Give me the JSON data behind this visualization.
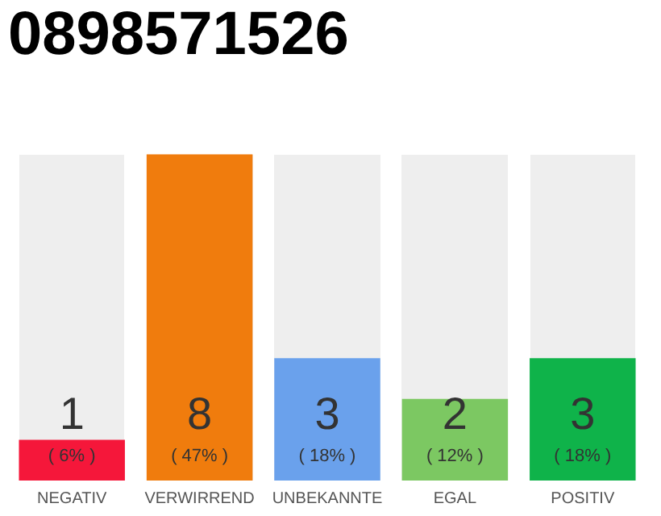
{
  "chart_data": {
    "type": "bar",
    "title": "0898571526",
    "categories": [
      "NEGATIV",
      "VERWIRREND",
      "UNBEKANNTE",
      "EGAL",
      "POSITIV"
    ],
    "values": [
      1,
      8,
      3,
      2,
      3
    ],
    "colors": [
      "#f5173a",
      "#f07c0d",
      "#6aa1ec",
      "#7cc862",
      "#0fb34a"
    ],
    "ylim": [
      0,
      8
    ],
    "data_labels": true,
    "grid": false,
    "legend": false,
    "annotations": [
      "( 6% )",
      "( 47% )",
      "( 18% )",
      "( 12% )",
      "( 18% )"
    ]
  }
}
